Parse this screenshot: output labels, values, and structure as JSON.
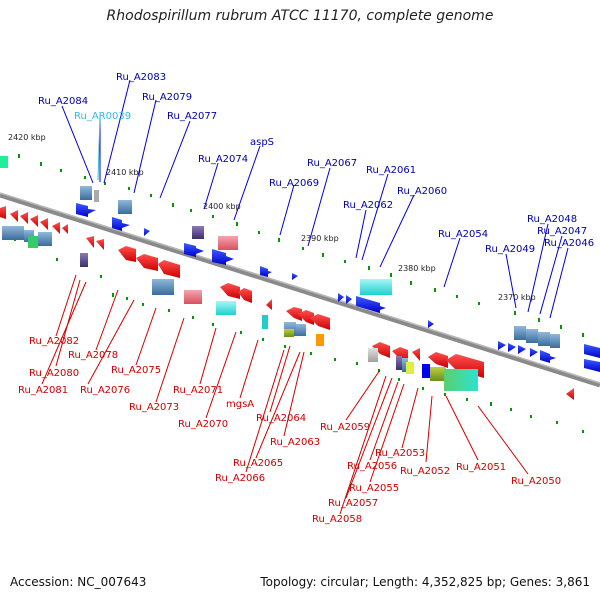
{
  "title": "Rhodospirillum rubrum ATCC 11170, complete genome",
  "footer": {
    "accession": "Accession: NC_007643",
    "summary": "Topology: circular; Length: 4,352,825 bp; Genes: 3,861"
  },
  "colors": {
    "backbone": "#808080",
    "forward_gene": "#0000ee",
    "reverse_gene": "#ee0000",
    "top_label": "#0000aa",
    "bottom_label": "#cc0000",
    "rna_label": "#33bbdd",
    "cog_cyan": "#33dddd",
    "cog_steel": "#4f86b5",
    "cog_pink": "#e87080",
    "cog_purple": "#5a4a8a",
    "cog_green": "#22aa55",
    "cog_orange": "#ff9900",
    "gc_skew": "#008800"
  },
  "kbp_ticks": [
    "2420 kbp",
    "2410 kbp",
    "2400 kbp",
    "2390 kbp",
    "2380 kbp",
    "2370 kbp"
  ],
  "top_labels": [
    "Ru_A2084",
    "Ru_AR0039",
    "Ru_A2083",
    "Ru_A2079",
    "Ru_A2077",
    "Ru_A2074",
    "aspS",
    "Ru_A2069",
    "Ru_A2067",
    "Ru_A2062",
    "Ru_A2061",
    "Ru_A2060",
    "Ru_A2054",
    "Ru_A2049",
    "Ru_A2048",
    "Ru_A2047",
    "Ru_A2046"
  ],
  "bottom_labels": [
    "Ru_A2082",
    "Ru_A2080",
    "Ru_A2081",
    "Ru_A2078",
    "Ru_A2076",
    "Ru_A2075",
    "Ru_A2073",
    "Ru_A2071",
    "Ru_A2070",
    "mgsA",
    "Ru_A2064",
    "Ru_A2063",
    "Ru_A2065",
    "Ru_A2066",
    "Ru_A2059",
    "Ru_A2056",
    "Ru_A2053",
    "Ru_A2055",
    "Ru_A2057",
    "Ru_A2058",
    "Ru_A2052",
    "Ru_A2051",
    "Ru_A2050"
  ]
}
